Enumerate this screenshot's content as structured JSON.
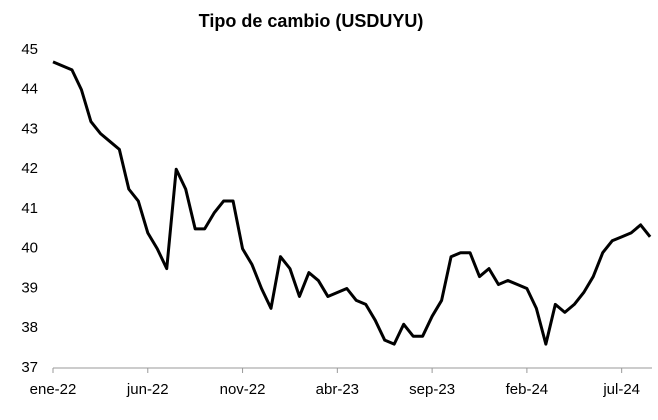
{
  "chart_data": {
    "type": "line",
    "title": "Tipo de cambio (USDUYU)",
    "x": [
      0,
      0.5,
      1,
      1.5,
      2,
      2.5,
      3,
      3.5,
      4,
      4.5,
      5,
      5.5,
      6,
      6.5,
      7,
      7.5,
      8,
      8.5,
      9,
      9.5,
      10,
      10.5,
      11,
      11.5,
      12,
      12.5,
      13,
      13.5,
      14,
      14.5,
      15,
      15.5,
      16,
      16.5,
      17,
      17.5,
      18,
      18.5,
      19,
      19.5,
      20,
      20.5,
      21,
      21.5,
      22,
      22.5,
      23,
      23.5,
      24,
      24.5,
      25,
      25.5,
      26,
      26.5,
      27,
      27.5,
      28,
      28.5,
      29,
      29.5,
      30,
      30.5,
      31,
      31.5
    ],
    "series": [
      {
        "name": "USDUYU",
        "color": "#000000",
        "values": [
          44.7,
          44.6,
          44.5,
          44.0,
          43.2,
          42.9,
          42.7,
          42.5,
          41.5,
          41.2,
          40.4,
          40.0,
          39.5,
          42.0,
          41.5,
          40.5,
          40.5,
          40.9,
          41.2,
          41.2,
          40.0,
          39.6,
          39.0,
          38.5,
          39.8,
          39.5,
          38.8,
          39.4,
          39.2,
          38.8,
          38.9,
          39.0,
          38.7,
          38.6,
          38.2,
          37.7,
          37.6,
          38.1,
          37.8,
          37.8,
          38.3,
          38.7,
          39.8,
          39.9,
          39.9,
          39.3,
          39.5,
          39.1,
          39.2,
          39.1,
          39.0,
          38.5,
          37.6,
          38.6,
          38.4,
          38.6,
          38.9,
          39.3,
          39.9,
          40.2,
          40.3,
          40.4,
          40.6,
          40.3
        ]
      }
    ],
    "xlim": [
      0,
      31.6
    ],
    "xticks": [
      {
        "value": 0,
        "label": "ene-22"
      },
      {
        "value": 5,
        "label": "jun-22"
      },
      {
        "value": 10,
        "label": "nov-22"
      },
      {
        "value": 15,
        "label": "abr-23"
      },
      {
        "value": 20,
        "label": "sep-23"
      },
      {
        "value": 25,
        "label": "feb-24"
      },
      {
        "value": 30,
        "label": "jul-24"
      }
    ],
    "ylim": [
      37,
      45
    ],
    "yticks": [
      37,
      38,
      39,
      40,
      41,
      42,
      43,
      44,
      45
    ],
    "grid": false
  }
}
